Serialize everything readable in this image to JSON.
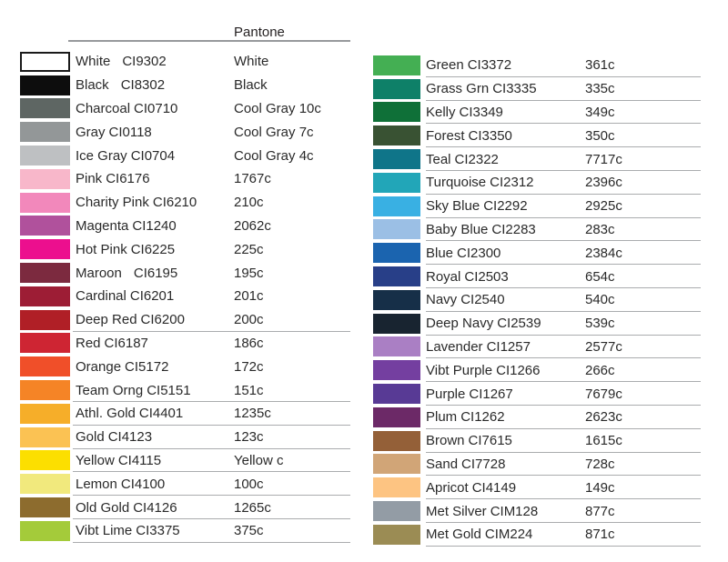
{
  "header": {
    "pantone_label": "Pantone"
  },
  "columns": [
    {
      "side": "left",
      "rows": [
        {
          "name": "White",
          "code": "CI9302",
          "pantone": "White",
          "color": "#ffffff",
          "bordered": true,
          "wide_gap": true,
          "underline": false
        },
        {
          "name": "Black",
          "code": "CI8302",
          "pantone": "Black",
          "color": "#0d0d0d",
          "bordered": false,
          "wide_gap": true,
          "underline": false
        },
        {
          "name": "Charcoal",
          "code": "CI0710",
          "pantone": "Cool Gray 10c",
          "color": "#5e6663",
          "bordered": false,
          "wide_gap": false,
          "underline": false
        },
        {
          "name": "Gray",
          "code": "CI0118",
          "pantone": "Cool Gray 7c",
          "color": "#939798",
          "bordered": false,
          "wide_gap": false,
          "underline": false
        },
        {
          "name": "Ice Gray",
          "code": "CI0704",
          "pantone": "Cool Gray 4c",
          "color": "#bec0c2",
          "bordered": false,
          "wide_gap": false,
          "underline": false
        },
        {
          "name": "Pink",
          "code": "CI6176",
          "pantone": "1767c",
          "color": "#f8b7ca",
          "bordered": false,
          "wide_gap": false,
          "underline": false
        },
        {
          "name": "Charity Pink",
          "code": "CI6210",
          "pantone": "210c",
          "color": "#f288bb",
          "bordered": false,
          "wide_gap": false,
          "underline": false
        },
        {
          "name": "Magenta",
          "code": "CI1240",
          "pantone": "2062c",
          "color": "#b0519c",
          "bordered": false,
          "wide_gap": false,
          "underline": false
        },
        {
          "name": "Hot Pink",
          "code": "CI6225",
          "pantone": "225c",
          "color": "#ec0f8e",
          "bordered": false,
          "wide_gap": false,
          "underline": false
        },
        {
          "name": "Maroon",
          "code": "CI6195",
          "pantone": "195c",
          "color": "#7c2a3f",
          "bordered": false,
          "wide_gap": true,
          "underline": false
        },
        {
          "name": "Cardinal",
          "code": "CI6201",
          "pantone": "201c",
          "color": "#9d1d35",
          "bordered": false,
          "wide_gap": false,
          "underline": false
        },
        {
          "name": "Deep Red",
          "code": "CI6200",
          "pantone": "200c",
          "color": "#b01f26",
          "bordered": false,
          "wide_gap": false,
          "underline": true
        },
        {
          "name": "Red",
          "code": "CI6187",
          "pantone": "186c",
          "color": "#ce2533",
          "bordered": false,
          "wide_gap": false,
          "underline": false
        },
        {
          "name": "Orange",
          "code": "CI5172",
          "pantone": "172c",
          "color": "#f04f29",
          "bordered": false,
          "wide_gap": false,
          "underline": false
        },
        {
          "name": "Team Orng",
          "code": "CI5151",
          "pantone": "151c",
          "color": "#f58426",
          "bordered": false,
          "wide_gap": false,
          "underline": true
        },
        {
          "name": "Athl. Gold",
          "code": "CI4401",
          "pantone": "1235c",
          "color": "#f6ae29",
          "bordered": false,
          "wide_gap": false,
          "underline": true
        },
        {
          "name": "Gold",
          "code": "CI4123",
          "pantone": "123c",
          "color": "#fbc253",
          "bordered": false,
          "wide_gap": false,
          "underline": true
        },
        {
          "name": "Yellow",
          "code": "CI4115",
          "pantone": "Yellow c",
          "color": "#fcdf00",
          "bordered": false,
          "wide_gap": false,
          "underline": true
        },
        {
          "name": "Lemon",
          "code": "CI4100",
          "pantone": "100c",
          "color": "#f1e97d",
          "bordered": false,
          "wide_gap": false,
          "underline": true
        },
        {
          "name": "Old Gold",
          "code": "CI4126",
          "pantone": "1265c",
          "color": "#8d6c2e",
          "bordered": false,
          "wide_gap": false,
          "underline": true
        },
        {
          "name": "Vibt Lime",
          "code": "CI3375",
          "pantone": "375c",
          "color": "#a4cb3a",
          "bordered": false,
          "wide_gap": false,
          "underline": true
        }
      ]
    },
    {
      "side": "right",
      "rows": [
        {
          "name": "Green",
          "code": "CI3372",
          "pantone": "361c",
          "color": "#44af53",
          "bordered": false,
          "wide_gap": false,
          "underline": true
        },
        {
          "name": "Grass Grn",
          "code": "CI3335",
          "pantone": "335c",
          "color": "#0e8068",
          "bordered": false,
          "wide_gap": false,
          "underline": true
        },
        {
          "name": "Kelly",
          "code": "CI3349",
          "pantone": "349c",
          "color": "#0f7038",
          "bordered": false,
          "wide_gap": false,
          "underline": true
        },
        {
          "name": "Forest",
          "code": "CI3350",
          "pantone": "350c",
          "color": "#395233",
          "bordered": false,
          "wide_gap": false,
          "underline": true
        },
        {
          "name": "Teal",
          "code": "CI2322",
          "pantone": "7717c",
          "color": "#0f7589",
          "bordered": false,
          "wide_gap": false,
          "underline": true
        },
        {
          "name": "Turquoise",
          "code": "CI2312",
          "pantone": "2396c",
          "color": "#22a6b8",
          "bordered": false,
          "wide_gap": false,
          "underline": true
        },
        {
          "name": "Sky Blue",
          "code": "CI2292",
          "pantone": "2925c",
          "color": "#39b0e3",
          "bordered": false,
          "wide_gap": false,
          "underline": true
        },
        {
          "name": "Baby Blue",
          "code": "CI2283",
          "pantone": "283c",
          "color": "#9bbfe5",
          "bordered": false,
          "wide_gap": false,
          "underline": true
        },
        {
          "name": "Blue",
          "code": "CI2300",
          "pantone": "2384c",
          "color": "#1b64af",
          "bordered": false,
          "wide_gap": false,
          "underline": true
        },
        {
          "name": "Royal",
          "code": "CI2503",
          "pantone": "654c",
          "color": "#283f88",
          "bordered": false,
          "wide_gap": false,
          "underline": true
        },
        {
          "name": "Navy",
          "code": "CI2540",
          "pantone": "540c",
          "color": "#162f48",
          "bordered": false,
          "wide_gap": false,
          "underline": true
        },
        {
          "name": "Deep Navy",
          "code": "CI2539",
          "pantone": "539c",
          "color": "#182430",
          "bordered": false,
          "wide_gap": false,
          "underline": true
        },
        {
          "name": "Lavender",
          "code": "CI1257",
          "pantone": "2577c",
          "color": "#aa7fc4",
          "bordered": false,
          "wide_gap": false,
          "underline": true
        },
        {
          "name": "Vibt Purple",
          "code": "CI1266",
          "pantone": "266c",
          "color": "#743fa0",
          "bordered": false,
          "wide_gap": false,
          "underline": true
        },
        {
          "name": "Purple",
          "code": "CI1267",
          "pantone": "7679c",
          "color": "#583a95",
          "bordered": false,
          "wide_gap": false,
          "underline": true
        },
        {
          "name": "Plum",
          "code": "CI1262",
          "pantone": "2623c",
          "color": "#6c2967",
          "bordered": false,
          "wide_gap": false,
          "underline": true
        },
        {
          "name": "Brown",
          "code": "CI7615",
          "pantone": "1615c",
          "color": "#946038",
          "bordered": false,
          "wide_gap": false,
          "underline": true
        },
        {
          "name": "Sand",
          "code": "CI7728",
          "pantone": "728c",
          "color": "#d1a577",
          "bordered": false,
          "wide_gap": false,
          "underline": true
        },
        {
          "name": "Apricot",
          "code": "CI4149",
          "pantone": "149c",
          "color": "#fdc482",
          "bordered": false,
          "wide_gap": false,
          "underline": true
        },
        {
          "name": "Met Silver",
          "code": "CIM128",
          "pantone": "877c",
          "color": "#939ca5",
          "bordered": false,
          "wide_gap": false,
          "underline": true
        },
        {
          "name": "Met Gold",
          "code": "CIM224",
          "pantone": "871c",
          "color": "#9b8c54",
          "bordered": false,
          "wide_gap": false,
          "underline": true
        }
      ]
    }
  ]
}
